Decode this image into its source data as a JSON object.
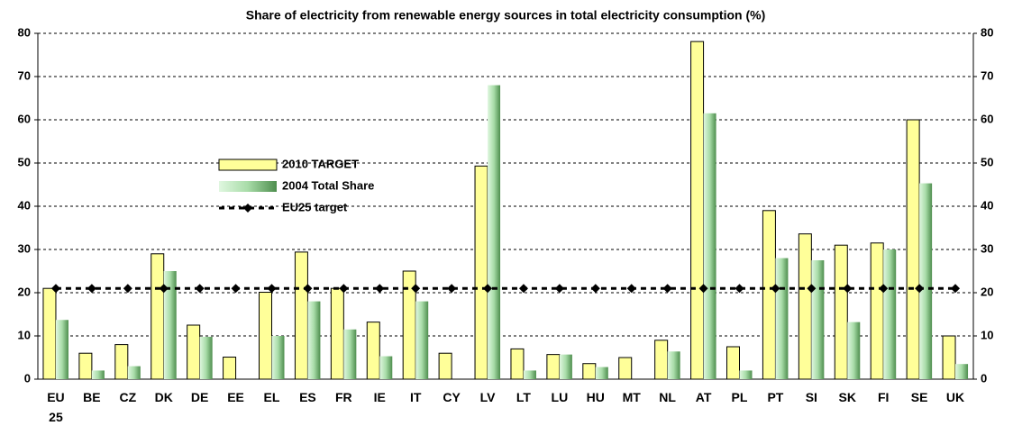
{
  "chart_data": {
    "type": "bar",
    "title": "Share of electricity from renewable energy sources in total electricity consumption (%)",
    "categories": [
      "EU 25",
      "BE",
      "CZ",
      "DK",
      "DE",
      "EE",
      "EL",
      "ES",
      "FR",
      "IE",
      "IT",
      "CY",
      "LV",
      "LT",
      "LU",
      "HU",
      "MT",
      "NL",
      "AT",
      "PL",
      "PT",
      "SI",
      "SK",
      "FI",
      "SE",
      "UK"
    ],
    "series": [
      {
        "name": "2010 TARGET",
        "color": "#ffff99",
        "values": [
          21,
          6,
          8,
          29,
          12.5,
          5.1,
          20.1,
          29.4,
          21,
          13.2,
          25,
          6,
          49.3,
          7,
          5.7,
          3.6,
          5,
          9,
          78.1,
          7.5,
          39,
          33.6,
          31,
          31.5,
          60,
          10
        ]
      },
      {
        "name": "2004 Total Share",
        "color": "#66aa66",
        "values": [
          13.7,
          2,
          3,
          25,
          9.8,
          null,
          10,
          18,
          11.5,
          5.3,
          18,
          null,
          68,
          2,
          5.7,
          2.8,
          null,
          6.4,
          61.5,
          2,
          28,
          27.5,
          13.2,
          30,
          45.3,
          3.5
        ]
      },
      {
        "name": "EU25 target",
        "type": "line",
        "color": "#000000",
        "values": [
          21,
          21,
          21,
          21,
          21,
          21,
          21,
          21,
          21,
          21,
          21,
          21,
          21,
          21,
          21,
          21,
          21,
          21,
          21,
          21,
          21,
          21,
          21,
          21,
          21,
          21
        ]
      }
    ],
    "ylim": [
      0,
      80
    ],
    "yticks": [
      0,
      10,
      20,
      30,
      40,
      50,
      60,
      70,
      80
    ],
    "y2lim": [
      0,
      80
    ],
    "y2ticks": [
      0,
      10,
      20,
      30,
      40,
      50,
      60,
      70,
      80
    ],
    "grid": true
  }
}
